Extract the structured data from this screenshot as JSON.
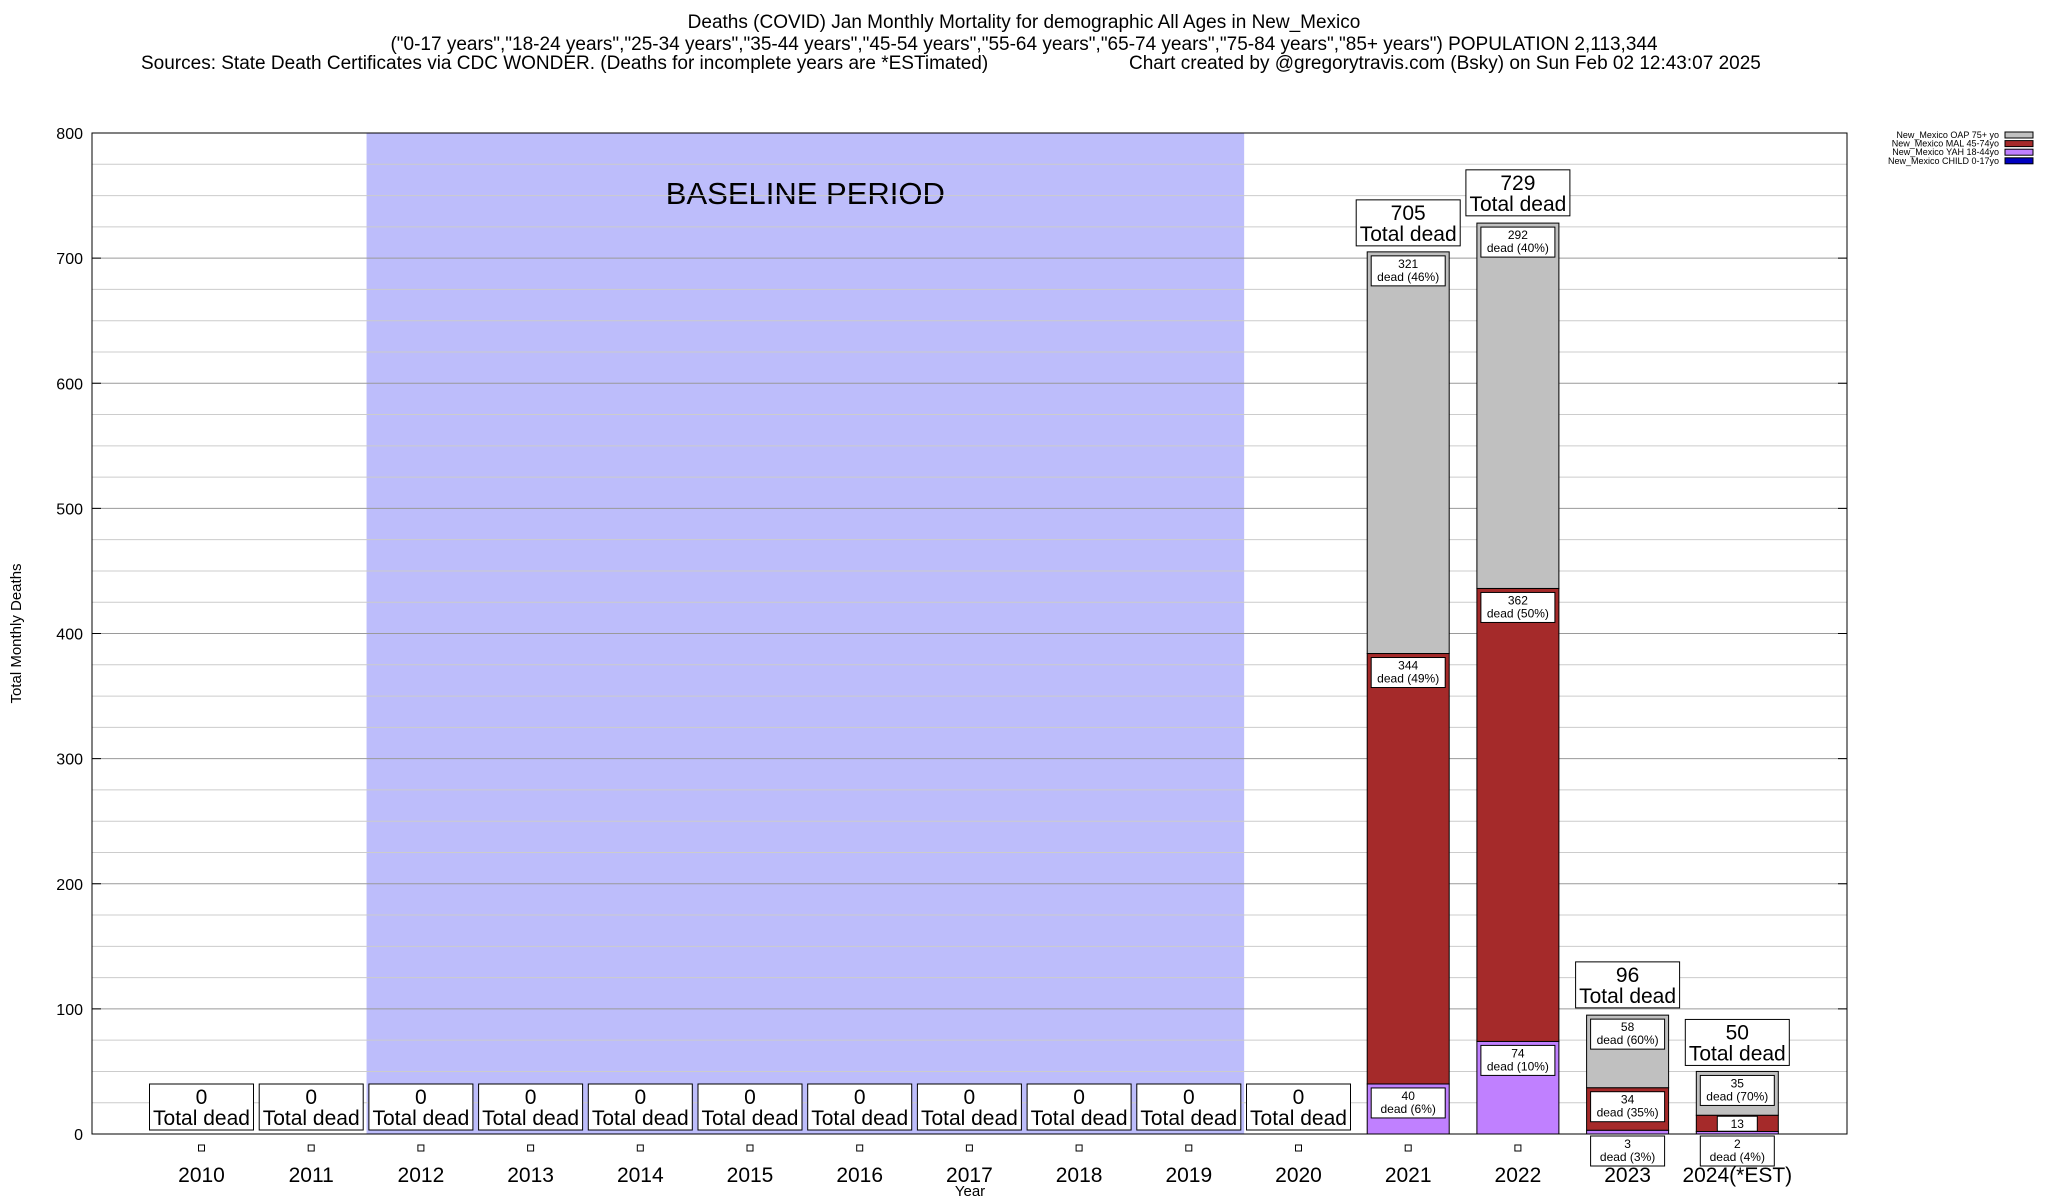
{
  "header": {
    "title": "Deaths (COVID) Jan Monthly Mortality for demographic All Ages in New_Mexico",
    "subtitle": "(\"0-17 years\",\"18-24 years\",\"25-34 years\",\"35-44 years\",\"45-54 years\",\"55-64 years\",\"65-74 years\",\"75-84 years\",\"85+ years\") POPULATION 2,113,344",
    "sources": "Sources: State Death Certificates via CDC WONDER. (Deaths for incomplete years are *ESTimated)",
    "credit": "Chart created by @gregorytravis.com (Bsky) on Sun Feb 02 12:43:07 2025"
  },
  "colors": {
    "baseline_band": "#bdbdfb",
    "OAP": "#c0c0c0",
    "MAL": "#a52a2a",
    "YAH": "#c080ff",
    "CHILD": "#0000c0"
  },
  "chart_data": {
    "type": "bar",
    "stacked": true,
    "xlabel": "Year",
    "ylabel": "Total Monthly Deaths",
    "ylim": [
      0,
      800
    ],
    "yticks": [
      0,
      100,
      200,
      300,
      400,
      500,
      600,
      700,
      800
    ],
    "categories": [
      "2010",
      "2011",
      "2012",
      "2013",
      "2014",
      "2015",
      "2016",
      "2017",
      "2018",
      "2019",
      "2020",
      "2021",
      "2022",
      "2023",
      "2024(*EST)"
    ],
    "baseline_label": "BASELINE PERIOD",
    "baseline_range": [
      "2012",
      "2019"
    ],
    "total_suffix": "Total dead",
    "legend_position": "top-right",
    "series": [
      {
        "name": "New_Mexico OAP 75+ yo",
        "key": "OAP",
        "values": [
          0,
          0,
          0,
          0,
          0,
          0,
          0,
          0,
          0,
          0,
          0,
          321,
          292,
          58,
          35
        ],
        "labels": [
          "",
          "",
          "",
          "",
          "",
          "",
          "",
          "",
          "",
          "",
          "",
          "321\ndead (46%)",
          "292\ndead (40%)",
          "58\ndead (60%)",
          "35\ndead (70%)"
        ]
      },
      {
        "name": "New_Mexico MAL 45-74yo",
        "key": "MAL",
        "values": [
          0,
          0,
          0,
          0,
          0,
          0,
          0,
          0,
          0,
          0,
          0,
          344,
          362,
          34,
          13
        ],
        "labels": [
          "",
          "",
          "",
          "",
          "",
          "",
          "",
          "",
          "",
          "",
          "",
          "344\ndead (49%)",
          "362\ndead (50%)",
          "34\ndead (35%)",
          "13"
        ]
      },
      {
        "name": "New_Mexico YAH 18-44yo",
        "key": "YAH",
        "values": [
          0,
          0,
          0,
          0,
          0,
          0,
          0,
          0,
          0,
          0,
          0,
          40,
          74,
          3,
          2
        ],
        "labels": [
          "",
          "",
          "",
          "",
          "",
          "",
          "",
          "",
          "",
          "",
          "",
          "40\ndead (6%)",
          "74\ndead (10%)",
          "3\ndead (3%)",
          "2\ndead (4%)"
        ]
      },
      {
        "name": "New_Mexico CHILD 0-17yo",
        "key": "CHILD",
        "values": [
          0,
          0,
          0,
          0,
          0,
          0,
          0,
          0,
          0,
          0,
          0,
          0,
          0,
          0,
          0
        ]
      }
    ],
    "totals": [
      0,
      0,
      0,
      0,
      0,
      0,
      0,
      0,
      0,
      0,
      0,
      705,
      729,
      96,
      50
    ]
  }
}
